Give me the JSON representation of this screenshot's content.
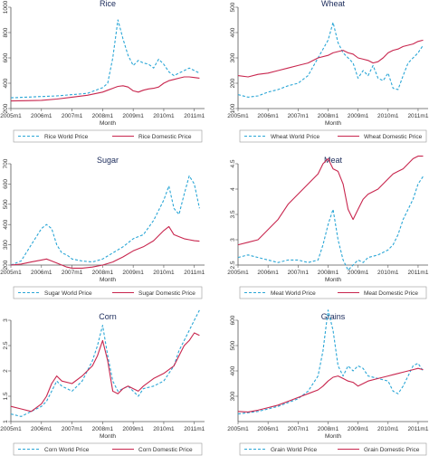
{
  "colors": {
    "world": "#2aa6d6",
    "domestic": "#c8264e",
    "title": "#1a2a5a"
  },
  "x_ticks": [
    "2005m1",
    "2006m1",
    "2007m1",
    "2008m1",
    "2009m1",
    "2010m1",
    "2011m1"
  ],
  "chart_data": [
    {
      "type": "line",
      "title": "Rice",
      "xlabel": "Month",
      "ylabel": "",
      "ylim": [
        200,
        1000
      ],
      "yticks": [
        200,
        400,
        600,
        800,
        1000
      ],
      "xlim": [
        0,
        76
      ],
      "x": [
        0,
        6,
        12,
        18,
        24,
        30,
        36,
        38,
        40,
        42,
        44,
        46,
        48,
        50,
        52,
        54,
        56,
        58,
        60,
        62,
        64,
        66,
        68,
        70,
        72,
        74
      ],
      "series": [
        {
          "name": "Rice World Price",
          "style": "dashed",
          "values": [
            285,
            290,
            295,
            300,
            310,
            320,
            365,
            400,
            600,
            900,
            750,
            620,
            540,
            580,
            560,
            550,
            520,
            590,
            550,
            490,
            460,
            480,
            500,
            520,
            500,
            480
          ]
        },
        {
          "name": "Rice Domestic Price",
          "style": "solid",
          "values": [
            260,
            262,
            265,
            275,
            290,
            305,
            330,
            345,
            360,
            375,
            380,
            370,
            340,
            330,
            345,
            355,
            360,
            370,
            400,
            420,
            430,
            440,
            450,
            450,
            445,
            440
          ]
        }
      ]
    },
    {
      "type": "line",
      "title": "Wheat",
      "xlabel": "Month",
      "ylabel": "",
      "ylim": [
        100,
        500
      ],
      "yticks": [
        100,
        200,
        300,
        400,
        500
      ],
      "xlim": [
        0,
        76
      ],
      "x": [
        0,
        4,
        8,
        12,
        16,
        20,
        24,
        28,
        32,
        36,
        38,
        40,
        42,
        44,
        46,
        48,
        50,
        52,
        54,
        56,
        58,
        60,
        62,
        64,
        66,
        68,
        70,
        72,
        74
      ],
      "series": [
        {
          "name": "Wheat World Price",
          "style": "dashed",
          "values": [
            155,
            145,
            150,
            165,
            175,
            190,
            200,
            230,
            300,
            370,
            440,
            360,
            320,
            300,
            280,
            220,
            250,
            230,
            270,
            220,
            210,
            240,
            180,
            175,
            230,
            280,
            300,
            320,
            350
          ]
        },
        {
          "name": "Wheat Domestic Price",
          "style": "solid",
          "values": [
            230,
            225,
            235,
            240,
            250,
            260,
            270,
            280,
            300,
            310,
            320,
            325,
            330,
            320,
            315,
            300,
            295,
            290,
            280,
            285,
            300,
            320,
            330,
            335,
            345,
            350,
            355,
            365,
            370
          ]
        }
      ]
    },
    {
      "type": "line",
      "title": "Sugar",
      "xlabel": "Month",
      "ylabel": "",
      "ylim": [
        200,
        700
      ],
      "yticks": [
        200,
        300,
        400,
        500,
        600,
        700
      ],
      "xlim": [
        0,
        76
      ],
      "x": [
        0,
        4,
        8,
        12,
        14,
        16,
        18,
        20,
        22,
        24,
        28,
        32,
        36,
        40,
        44,
        48,
        52,
        56,
        60,
        62,
        64,
        66,
        68,
        70,
        72,
        74
      ],
      "series": [
        {
          "name": "Sugar World Price",
          "style": "dashed",
          "values": [
            200,
            220,
            300,
            380,
            400,
            380,
            300,
            260,
            250,
            230,
            220,
            215,
            230,
            260,
            290,
            330,
            350,
            420,
            520,
            590,
            480,
            450,
            550,
            640,
            600,
            480
          ]
        },
        {
          "name": "Sugar Domestic Price",
          "style": "solid",
          "values": [
            200,
            205,
            215,
            225,
            230,
            220,
            210,
            200,
            190,
            185,
            185,
            190,
            200,
            215,
            240,
            270,
            290,
            320,
            370,
            390,
            350,
            340,
            330,
            325,
            320,
            318
          ]
        }
      ]
    },
    {
      "type": "line",
      "title": "Meat",
      "xlabel": "Month",
      "ylabel": "",
      "ylim": [
        2.5,
        4.5
      ],
      "yticks": [
        2.5,
        3,
        3.5,
        4,
        4.5
      ],
      "xlim": [
        0,
        76
      ],
      "x": [
        0,
        4,
        8,
        12,
        16,
        20,
        24,
        28,
        32,
        34,
        36,
        38,
        40,
        42,
        44,
        46,
        48,
        50,
        52,
        56,
        60,
        62,
        64,
        66,
        68,
        70,
        72,
        74
      ],
      "series": [
        {
          "name": "Meat World Price",
          "style": "dashed",
          "values": [
            2.65,
            2.7,
            2.65,
            2.6,
            2.55,
            2.6,
            2.6,
            2.55,
            2.6,
            2.9,
            3.3,
            3.6,
            3.0,
            2.6,
            2.4,
            2.5,
            2.6,
            2.55,
            2.65,
            2.7,
            2.8,
            2.9,
            3.1,
            3.4,
            3.6,
            3.8,
            4.1,
            4.25
          ]
        },
        {
          "name": "Meat Domestic Price",
          "style": "solid",
          "values": [
            2.9,
            2.95,
            3.0,
            3.2,
            3.4,
            3.7,
            3.9,
            4.1,
            4.3,
            4.5,
            4.6,
            4.4,
            4.35,
            4.1,
            3.6,
            3.4,
            3.6,
            3.8,
            3.9,
            4.0,
            4.2,
            4.3,
            4.35,
            4.4,
            4.5,
            4.6,
            4.65,
            4.65
          ]
        }
      ]
    },
    {
      "type": "line",
      "title": "Corn",
      "xlabel": "Month",
      "ylabel": "",
      "ylim": [
        1,
        3
      ],
      "yticks": [
        1,
        1.5,
        2,
        2.5,
        3
      ],
      "xlim": [
        0,
        76
      ],
      "x": [
        0,
        4,
        8,
        12,
        14,
        16,
        18,
        20,
        24,
        28,
        32,
        34,
        36,
        38,
        40,
        42,
        44,
        46,
        48,
        50,
        52,
        56,
        60,
        64,
        66,
        68,
        70,
        72,
        74
      ],
      "series": [
        {
          "name": "Corn World Price",
          "style": "dashed",
          "values": [
            1.15,
            1.1,
            1.2,
            1.3,
            1.4,
            1.6,
            1.8,
            1.7,
            1.6,
            1.8,
            2.2,
            2.5,
            2.9,
            2.3,
            1.8,
            1.6,
            1.65,
            1.7,
            1.6,
            1.5,
            1.65,
            1.7,
            1.8,
            2.1,
            2.4,
            2.6,
            2.8,
            3.0,
            3.2
          ]
        },
        {
          "name": "Corn Domestic Price",
          "style": "solid",
          "values": [
            1.3,
            1.25,
            1.2,
            1.35,
            1.5,
            1.75,
            1.9,
            1.8,
            1.75,
            1.9,
            2.1,
            2.3,
            2.6,
            2.2,
            1.6,
            1.55,
            1.65,
            1.7,
            1.65,
            1.6,
            1.7,
            1.85,
            1.95,
            2.1,
            2.3,
            2.5,
            2.6,
            2.75,
            2.7
          ]
        }
      ]
    },
    {
      "type": "line",
      "title": "Grains",
      "xlabel": "Month",
      "ylabel": "",
      "ylim": [
        200,
        600
      ],
      "yticks": [
        300,
        400,
        500,
        600
      ],
      "xlim": [
        0,
        76
      ],
      "x": [
        0,
        4,
        8,
        12,
        16,
        20,
        24,
        28,
        32,
        34,
        36,
        38,
        40,
        42,
        44,
        46,
        48,
        50,
        52,
        56,
        60,
        62,
        64,
        66,
        68,
        70,
        72,
        74
      ],
      "series": [
        {
          "name": "Grain World Price",
          "style": "dashed",
          "values": [
            230,
            235,
            240,
            250,
            260,
            275,
            290,
            320,
            380,
            480,
            640,
            560,
            420,
            380,
            420,
            400,
            420,
            410,
            380,
            370,
            360,
            320,
            310,
            340,
            380,
            420,
            430,
            400
          ]
        },
        {
          "name": "Grain Domestic Price",
          "style": "solid",
          "values": [
            240,
            238,
            245,
            255,
            265,
            280,
            295,
            310,
            325,
            340,
            360,
            375,
            380,
            370,
            360,
            355,
            340,
            350,
            360,
            370,
            380,
            385,
            390,
            395,
            400,
            405,
            410,
            405
          ]
        }
      ]
    }
  ]
}
